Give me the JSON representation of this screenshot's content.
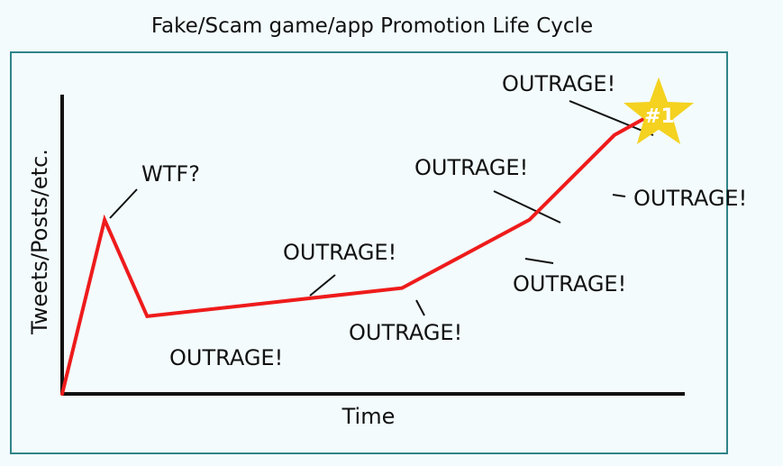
{
  "chart_data": {
    "type": "line",
    "title": "Fake/Scam game/app Promotion Life Cycle",
    "xlabel": "Time",
    "ylabel": "Tweets/Posts/etc.",
    "grid": false,
    "series": [
      {
        "points": [
          [
            0,
            0
          ],
          [
            1,
            7.4
          ],
          [
            2,
            3.3
          ],
          [
            8,
            4.5
          ],
          [
            11,
            7.4
          ],
          [
            13,
            11
          ],
          [
            14,
            12
          ]
        ]
      }
    ],
    "annotations": [
      {
        "text": "WTF?",
        "point": 1
      },
      {
        "text": "OUTRAGE!",
        "point": 2
      },
      {
        "text": "OUTRAGE!",
        "segment": [
          2,
          3
        ]
      },
      {
        "text": "OUTRAGE!",
        "point": 3
      },
      {
        "text": "OUTRAGE!",
        "segment": [
          3,
          4
        ]
      },
      {
        "text": "OUTRAGE!",
        "point": 4
      },
      {
        "text": "OUTRAGE!",
        "segment": [
          4,
          5
        ]
      },
      {
        "text": "OUTRAGE!",
        "point": 5
      }
    ],
    "badge": {
      "text": "#1",
      "shape": "star"
    },
    "colors": {
      "line": "#ee1b1b",
      "star": "#f4d21f",
      "frame": "#2f8489"
    }
  }
}
